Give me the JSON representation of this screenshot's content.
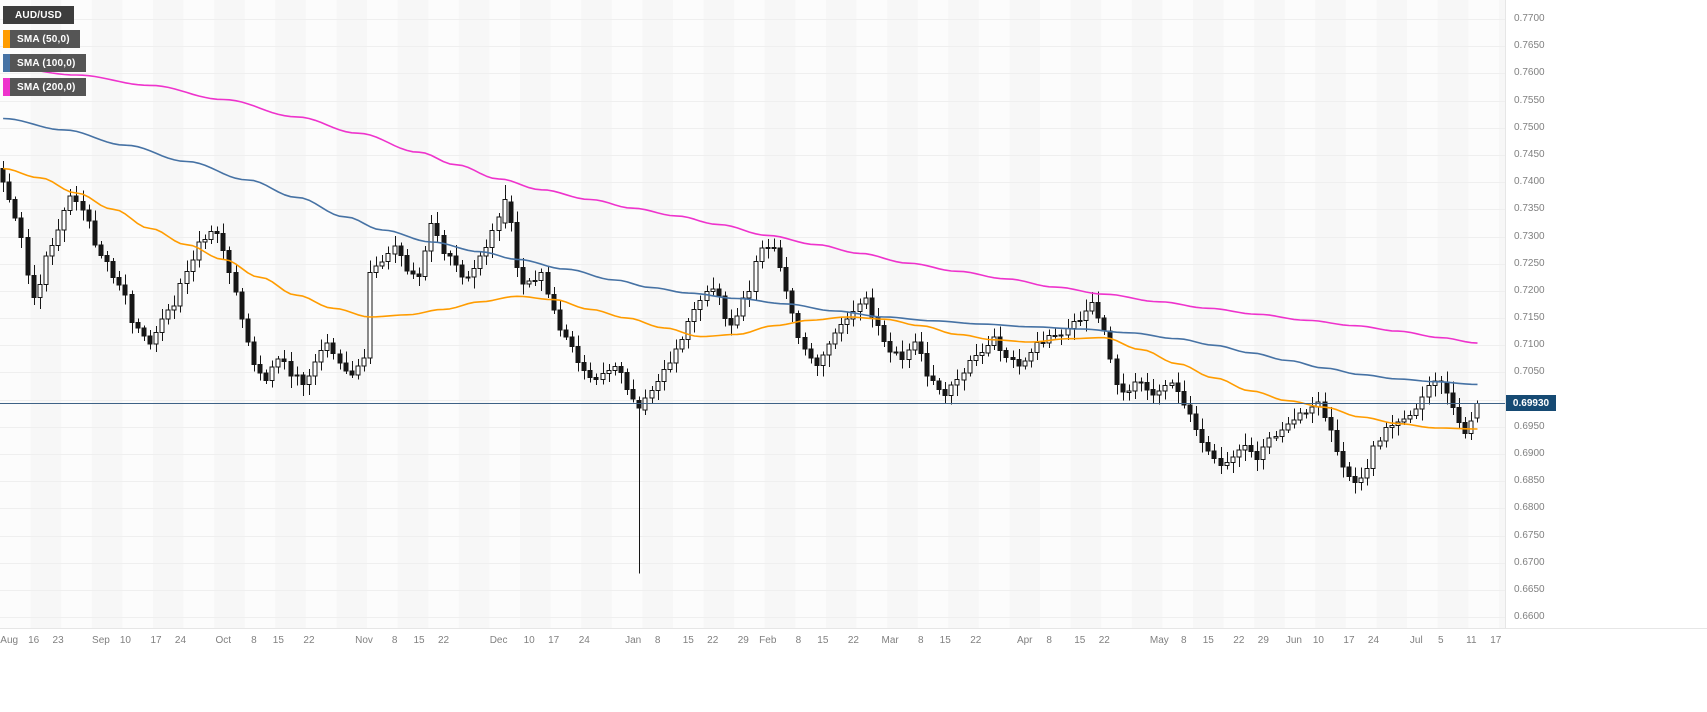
{
  "colors": {
    "plot_bg": "#fcfcfc",
    "band_fill": "rgba(0,0,0,0.018)",
    "grid_line": "#efefef",
    "candle_up_fill": "#ffffff",
    "candle_down_fill": "#161616",
    "candle_stroke": "#161616",
    "price_line": "#3e6286",
    "price_label_bg": "#164a73",
    "axis_text": "#808080",
    "legend_symbol_bg": "#3d3d3d",
    "legend_indicator_bg": "#555555"
  },
  "chart_data": {
    "type": "candlestick",
    "symbol": "AUD/USD",
    "current_price": {
      "value": "0.69930",
      "numeric": 0.6993
    },
    "y_axis": {
      "tick_step": 0.005,
      "range_shown": [
        0.658,
        0.7735
      ],
      "ticks": [
        "0.7700",
        "0.7650",
        "0.7600",
        "0.7550",
        "0.7500",
        "0.7450",
        "0.7400",
        "0.7350",
        "0.7300",
        "0.7250",
        "0.7200",
        "0.7150",
        "0.7100",
        "0.7050",
        "0.7000",
        "0.6950",
        "0.6900",
        "0.6850",
        "0.6800",
        "0.6750",
        "0.6700",
        "0.6650",
        "0.6600"
      ]
    },
    "x_axis": {
      "labels": [
        [
          "Aug",
          1
        ],
        [
          "16",
          5
        ],
        [
          "23",
          9
        ],
        [
          "Sep",
          16
        ],
        [
          "10",
          20
        ],
        [
          "17",
          25
        ],
        [
          "24",
          29
        ],
        [
          "Oct",
          36
        ],
        [
          "8",
          41
        ],
        [
          "15",
          45
        ],
        [
          "22",
          50
        ],
        [
          "Nov",
          59
        ],
        [
          "8",
          64
        ],
        [
          "15",
          68
        ],
        [
          "22",
          72
        ],
        [
          "Dec",
          81
        ],
        [
          "10",
          86
        ],
        [
          "17",
          90
        ],
        [
          "24",
          95
        ],
        [
          "Jan",
          103
        ],
        [
          "8",
          107
        ],
        [
          "15",
          112
        ],
        [
          "22",
          116
        ],
        [
          "29",
          121
        ],
        [
          "Feb",
          125
        ],
        [
          "8",
          130
        ],
        [
          "15",
          134
        ],
        [
          "22",
          139
        ],
        [
          "Mar",
          145
        ],
        [
          "8",
          150
        ],
        [
          "15",
          154
        ],
        [
          "22",
          159
        ],
        [
          "Apr",
          167
        ],
        [
          "8",
          171
        ],
        [
          "15",
          176
        ],
        [
          "22",
          180
        ],
        [
          "May",
          189
        ],
        [
          "8",
          193
        ],
        [
          "15",
          197
        ],
        [
          "22",
          202
        ],
        [
          "29",
          206
        ],
        [
          "Jun",
          211
        ],
        [
          "10",
          215
        ],
        [
          "17",
          220
        ],
        [
          "24",
          224
        ],
        [
          "Jul",
          231
        ],
        [
          "5",
          235
        ],
        [
          "11",
          240
        ],
        [
          "17",
          244
        ]
      ]
    },
    "candles": {
      "count": 242,
      "note": "close_anchors are [candle_index, close] values read from the chart; intermediate daily candles interpolated",
      "close_anchors": [
        [
          0,
          0.7405
        ],
        [
          2,
          0.733
        ],
        [
          5,
          0.7195
        ],
        [
          8,
          0.729
        ],
        [
          11,
          0.737
        ],
        [
          13,
          0.7345
        ],
        [
          16,
          0.727
        ],
        [
          19,
          0.7205
        ],
        [
          22,
          0.713
        ],
        [
          24,
          0.7105
        ],
        [
          27,
          0.716
        ],
        [
          30,
          0.7235
        ],
        [
          33,
          0.73
        ],
        [
          35,
          0.731
        ],
        [
          37,
          0.724
        ],
        [
          39,
          0.715
        ],
        [
          41,
          0.706
        ],
        [
          43,
          0.704
        ],
        [
          45,
          0.708
        ],
        [
          47,
          0.705
        ],
        [
          49,
          0.703
        ],
        [
          51,
          0.707
        ],
        [
          53,
          0.71
        ],
        [
          55,
          0.707
        ],
        [
          57,
          0.704
        ],
        [
          59,
          0.708
        ],
        [
          60,
          0.723
        ],
        [
          62,
          0.725
        ],
        [
          64,
          0.728
        ],
        [
          66,
          0.724
        ],
        [
          68,
          0.723
        ],
        [
          70,
          0.732
        ],
        [
          73,
          0.726
        ],
        [
          76,
          0.722
        ],
        [
          78,
          0.726
        ],
        [
          80,
          0.731
        ],
        [
          82,
          0.7368
        ],
        [
          85,
          0.721
        ],
        [
          88,
          0.723
        ],
        [
          90,
          0.716
        ],
        [
          92,
          0.711
        ],
        [
          95,
          0.705
        ],
        [
          97,
          0.7035
        ],
        [
          99,
          0.706
        ],
        [
          101,
          0.705
        ],
        [
          103,
          0.7
        ],
        [
          104,
          0.6985
        ],
        [
          106,
          0.701
        ],
        [
          108,
          0.705
        ],
        [
          110,
          0.709
        ],
        [
          112,
          0.714
        ],
        [
          114,
          0.718
        ],
        [
          116,
          0.721
        ],
        [
          119,
          0.7135
        ],
        [
          121,
          0.718
        ],
        [
          124,
          0.7275
        ],
        [
          126,
          0.7285
        ],
        [
          128,
          0.72
        ],
        [
          130,
          0.711
        ],
        [
          133,
          0.7065
        ],
        [
          135,
          0.71
        ],
        [
          137,
          0.714
        ],
        [
          139,
          0.7165
        ],
        [
          141,
          0.7185
        ],
        [
          143,
          0.713
        ],
        [
          145,
          0.709
        ],
        [
          147,
          0.708
        ],
        [
          149,
          0.71
        ],
        [
          152,
          0.703
        ],
        [
          154,
          0.701
        ],
        [
          156,
          0.704
        ],
        [
          158,
          0.707
        ],
        [
          160,
          0.709
        ],
        [
          162,
          0.711
        ],
        [
          164,
          0.708
        ],
        [
          166,
          0.7055
        ],
        [
          168,
          0.709
        ],
        [
          170,
          0.711
        ],
        [
          172,
          0.712
        ],
        [
          174,
          0.713
        ],
        [
          176,
          0.715
        ],
        [
          178,
          0.7185
        ],
        [
          180,
          0.712
        ],
        [
          182,
          0.703
        ],
        [
          183,
          0.701
        ],
        [
          185,
          0.7035
        ],
        [
          187,
          0.702
        ],
        [
          189,
          0.701
        ],
        [
          191,
          0.703
        ],
        [
          193,
          0.699
        ],
        [
          195,
          0.695
        ],
        [
          197,
          0.69
        ],
        [
          199,
          0.688
        ],
        [
          201,
          0.69
        ],
        [
          203,
          0.692
        ],
        [
          205,
          0.6895
        ],
        [
          207,
          0.6925
        ],
        [
          209,
          0.695
        ],
        [
          211,
          0.696
        ],
        [
          213,
          0.698
        ],
        [
          215,
          0.6995
        ],
        [
          217,
          0.694
        ],
        [
          219,
          0.687
        ],
        [
          221,
          0.6845
        ],
        [
          223,
          0.688
        ],
        [
          224,
          0.6915
        ],
        [
          226,
          0.6945
        ],
        [
          228,
          0.696
        ],
        [
          230,
          0.6975
        ],
        [
          231,
          0.6985
        ],
        [
          233,
          0.702
        ],
        [
          235,
          0.7035
        ],
        [
          237,
          0.699
        ],
        [
          239,
          0.6935
        ],
        [
          240,
          0.6955
        ],
        [
          241,
          0.6993
        ]
      ],
      "special_ohlc": {
        "82": [
          0.7325,
          0.7395,
          0.7315,
          0.7368
        ],
        "104": [
          0.6998,
          0.7006,
          0.668,
          0.6985
        ],
        "241": [
          0.6966,
          0.6998,
          0.6958,
          0.6993
        ]
      }
    },
    "series": [
      {
        "name": "SMA (50,0)",
        "color": "#ff9c00",
        "anchors": [
          [
            0,
            0.7425
          ],
          [
            6,
            0.7408
          ],
          [
            12,
            0.738
          ],
          [
            18,
            0.735
          ],
          [
            24,
            0.7315
          ],
          [
            30,
            0.7285
          ],
          [
            36,
            0.7258
          ],
          [
            42,
            0.7225
          ],
          [
            48,
            0.7192
          ],
          [
            54,
            0.7168
          ],
          [
            60,
            0.7152
          ],
          [
            66,
            0.7156
          ],
          [
            72,
            0.7166
          ],
          [
            78,
            0.718
          ],
          [
            84,
            0.719
          ],
          [
            90,
            0.7184
          ],
          [
            96,
            0.7166
          ],
          [
            102,
            0.715
          ],
          [
            108,
            0.7132
          ],
          [
            114,
            0.7116
          ],
          [
            120,
            0.712
          ],
          [
            126,
            0.7136
          ],
          [
            132,
            0.7146
          ],
          [
            138,
            0.7152
          ],
          [
            144,
            0.7148
          ],
          [
            150,
            0.7136
          ],
          [
            156,
            0.712
          ],
          [
            162,
            0.711
          ],
          [
            168,
            0.7106
          ],
          [
            174,
            0.7112
          ],
          [
            180,
            0.7114
          ],
          [
            186,
            0.7092
          ],
          [
            192,
            0.7066
          ],
          [
            198,
            0.704
          ],
          [
            204,
            0.7016
          ],
          [
            210,
            0.6998
          ],
          [
            216,
            0.6986
          ],
          [
            222,
            0.6968
          ],
          [
            228,
            0.6956
          ],
          [
            234,
            0.6948
          ],
          [
            241,
            0.6946
          ]
        ]
      },
      {
        "name": "SMA (100,0)",
        "color": "#4672a4",
        "anchors": [
          [
            0,
            0.7517
          ],
          [
            10,
            0.7496
          ],
          [
            20,
            0.7468
          ],
          [
            30,
            0.7438
          ],
          [
            40,
            0.7404
          ],
          [
            48,
            0.7372
          ],
          [
            56,
            0.7336
          ],
          [
            62,
            0.7312
          ],
          [
            70,
            0.729
          ],
          [
            78,
            0.7272
          ],
          [
            84,
            0.7258
          ],
          [
            92,
            0.724
          ],
          [
            100,
            0.722
          ],
          [
            106,
            0.7206
          ],
          [
            112,
            0.7196
          ],
          [
            120,
            0.7186
          ],
          [
            128,
            0.7176
          ],
          [
            136,
            0.7163
          ],
          [
            144,
            0.7152
          ],
          [
            152,
            0.7145
          ],
          [
            160,
            0.7139
          ],
          [
            168,
            0.7134
          ],
          [
            176,
            0.713
          ],
          [
            184,
            0.7123
          ],
          [
            192,
            0.7112
          ],
          [
            198,
            0.71
          ],
          [
            204,
            0.7086
          ],
          [
            210,
            0.7072
          ],
          [
            216,
            0.7058
          ],
          [
            222,
            0.7046
          ],
          [
            228,
            0.7038
          ],
          [
            234,
            0.7033
          ],
          [
            241,
            0.7028
          ]
        ]
      },
      {
        "name": "SMA (200,0)",
        "color": "#ee33cc",
        "anchors": [
          [
            0,
            0.7612
          ],
          [
            12,
            0.7597
          ],
          [
            24,
            0.7578
          ],
          [
            36,
            0.7552
          ],
          [
            48,
            0.752
          ],
          [
            58,
            0.749
          ],
          [
            68,
            0.7455
          ],
          [
            74,
            0.7432
          ],
          [
            81,
            0.7406
          ],
          [
            88,
            0.7386
          ],
          [
            96,
            0.7368
          ],
          [
            103,
            0.7352
          ],
          [
            110,
            0.7338
          ],
          [
            117,
            0.7322
          ],
          [
            125,
            0.7302
          ],
          [
            133,
            0.7285
          ],
          [
            140,
            0.7269
          ],
          [
            148,
            0.7251
          ],
          [
            156,
            0.7236
          ],
          [
            164,
            0.7222
          ],
          [
            172,
            0.7207
          ],
          [
            180,
            0.7194
          ],
          [
            189,
            0.718
          ],
          [
            197,
            0.7168
          ],
          [
            205,
            0.7157
          ],
          [
            213,
            0.7146
          ],
          [
            221,
            0.7136
          ],
          [
            228,
            0.7126
          ],
          [
            235,
            0.7114
          ],
          [
            241,
            0.7104
          ]
        ]
      }
    ]
  }
}
